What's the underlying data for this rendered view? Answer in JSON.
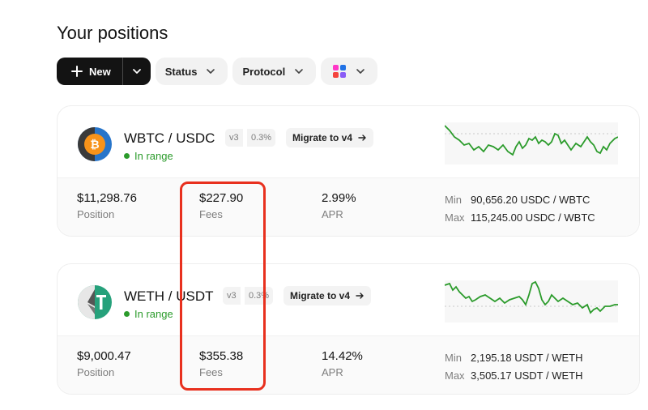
{
  "page": {
    "title": "Your positions"
  },
  "toolbar": {
    "new_label": "New",
    "status_label": "Status",
    "protocol_label": "Protocol"
  },
  "positions": [
    {
      "pair": "WBTC / USDC",
      "version": "v3",
      "fee_tier": "0.3%",
      "migrate_label": "Migrate to v4",
      "status": "In range",
      "position_value": "$11,298.76",
      "position_label": "Position",
      "fees_value": "$227.90",
      "fees_label": "Fees",
      "apr_value": "2.99%",
      "apr_label": "APR",
      "min_label": "Min",
      "min_value": "90,656.20 USDC / WBTC",
      "max_label": "Max",
      "max_value": "115,245.00 USDC / WBTC",
      "token_icon": "wbtc-usdc-pair-icon"
    },
    {
      "pair": "WETH / USDT",
      "version": "v3",
      "fee_tier": "0.3%",
      "migrate_label": "Migrate to v4",
      "status": "In range",
      "position_value": "$9,000.47",
      "position_label": "Position",
      "fees_value": "$355.38",
      "fees_label": "Fees",
      "apr_value": "14.42%",
      "apr_label": "APR",
      "min_label": "Min",
      "min_value": "2,195.18 USDT / WETH",
      "max_label": "Max",
      "max_value": "3,505.17 USDT / WETH",
      "token_icon": "weth-usdt-pair-icon"
    }
  ],
  "colors": {
    "in_range": "#2b9b2b",
    "highlight": "#e8301e",
    "spark_line": "#2b9b2b"
  }
}
